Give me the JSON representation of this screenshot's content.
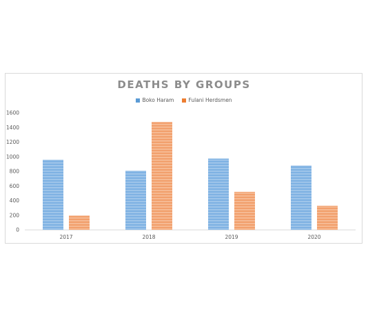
{
  "chart_data": {
    "type": "bar",
    "title": "DEATHS BY GROUPS",
    "categories": [
      "2017",
      "2018",
      "2019",
      "2020"
    ],
    "series": [
      {
        "name": "Boko Haram",
        "values": [
          960,
          810,
          975,
          880
        ],
        "color": "#5b9bd5"
      },
      {
        "name": "Fulani Herdsmen",
        "values": [
          195,
          1475,
          520,
          330
        ],
        "color": "#ed7d31"
      }
    ],
    "ylim": [
      0,
      1600
    ],
    "yticks": [
      0,
      200,
      400,
      600,
      800,
      1000,
      1200,
      1400,
      1600
    ],
    "grid": false,
    "legend": "top-center"
  }
}
